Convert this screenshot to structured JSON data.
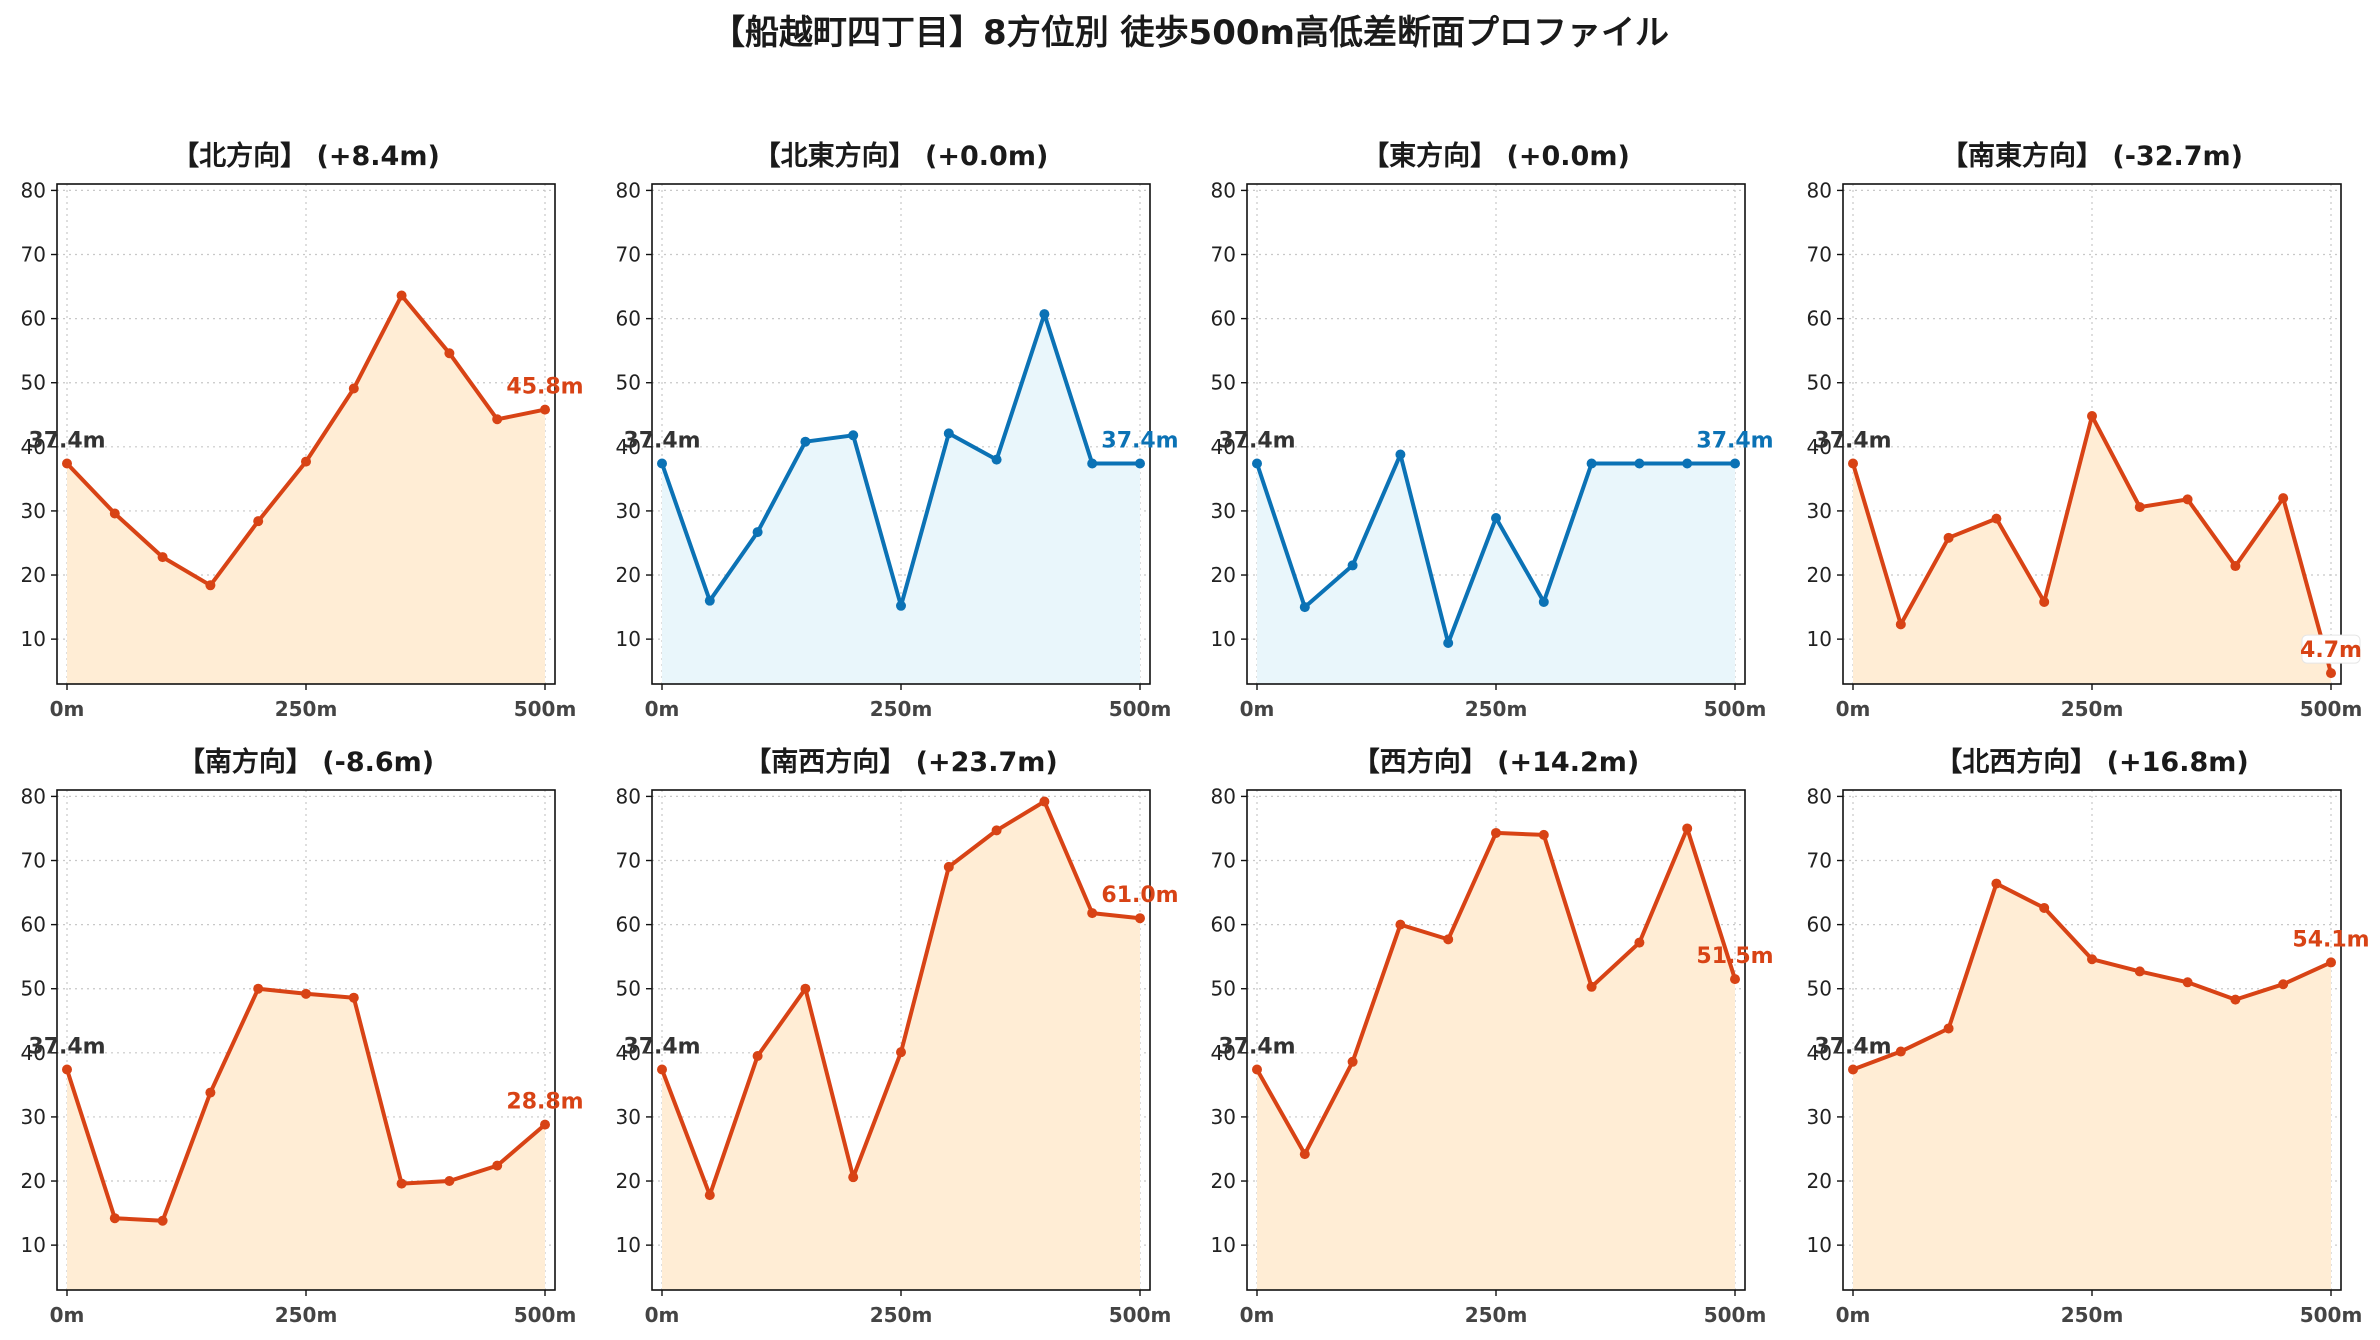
{
  "title": "【船越町四丁目】8方位別 徒歩500m高低差断面プロファイル",
  "colors": {
    "up_line": "#d84315",
    "up_fill": "#ffedd5",
    "flat_line": "#0b72b5",
    "flat_fill": "#e9f6fb"
  },
  "chart_data": [
    {
      "type": "area",
      "title": "【北方向】 (+8.4m)",
      "trend": "up",
      "x": [
        0,
        50,
        100,
        150,
        200,
        250,
        300,
        350,
        400,
        450,
        500
      ],
      "y": [
        37.4,
        29.6,
        22.8,
        18.4,
        28.4,
        37.7,
        49.1,
        63.6,
        54.6,
        44.3,
        45.8
      ],
      "start_label": "37.4m",
      "end_label": "45.8m",
      "xticks": [
        "0m",
        "250m",
        "500m"
      ],
      "yticks": [
        "10",
        "20",
        "30",
        "40",
        "50",
        "60",
        "70",
        "80"
      ],
      "ylim": [
        3,
        81
      ],
      "grid": true
    },
    {
      "type": "area",
      "title": "【北東方向】 (+0.0m)",
      "trend": "flat",
      "x": [
        0,
        50,
        100,
        150,
        200,
        250,
        300,
        350,
        400,
        450,
        500
      ],
      "y": [
        37.4,
        16.0,
        26.7,
        40.8,
        41.8,
        15.2,
        42.1,
        38.0,
        60.7,
        37.4,
        37.4
      ],
      "start_label": "37.4m",
      "end_label": "37.4m",
      "xticks": [
        "0m",
        "250m",
        "500m"
      ],
      "yticks": [
        "10",
        "20",
        "30",
        "40",
        "50",
        "60",
        "70",
        "80"
      ],
      "ylim": [
        3,
        81
      ],
      "grid": true
    },
    {
      "type": "area",
      "title": "【東方向】 (+0.0m)",
      "trend": "flat",
      "x": [
        0,
        50,
        100,
        150,
        200,
        250,
        300,
        350,
        400,
        450,
        500
      ],
      "y": [
        37.4,
        15.0,
        21.5,
        38.8,
        9.4,
        28.9,
        15.8,
        37.4,
        37.4,
        37.4,
        37.4
      ],
      "start_label": "37.4m",
      "end_label": "37.4m",
      "xticks": [
        "0m",
        "250m",
        "500m"
      ],
      "yticks": [
        "10",
        "20",
        "30",
        "40",
        "50",
        "60",
        "70",
        "80"
      ],
      "ylim": [
        3,
        81
      ],
      "grid": true
    },
    {
      "type": "area",
      "title": "【南東方向】 (-32.7m)",
      "trend": "down",
      "x": [
        0,
        50,
        100,
        150,
        200,
        250,
        300,
        350,
        400,
        450,
        500
      ],
      "y": [
        37.4,
        12.3,
        25.8,
        28.8,
        15.8,
        44.8,
        30.6,
        31.8,
        21.4,
        32.0,
        4.7
      ],
      "start_label": "37.4m",
      "end_label": "4.7m",
      "xticks": [
        "0m",
        "250m",
        "500m"
      ],
      "yticks": [
        "10",
        "20",
        "30",
        "40",
        "50",
        "60",
        "70",
        "80"
      ],
      "ylim": [
        3,
        81
      ],
      "grid": true
    },
    {
      "type": "area",
      "title": "【南方向】 (-8.6m)",
      "trend": "down",
      "x": [
        0,
        50,
        100,
        150,
        200,
        250,
        300,
        350,
        400,
        450,
        500
      ],
      "y": [
        37.4,
        14.2,
        13.8,
        33.8,
        50.0,
        49.2,
        48.6,
        19.6,
        20.0,
        22.4,
        28.8
      ],
      "start_label": "37.4m",
      "end_label": "28.8m",
      "xticks": [
        "0m",
        "250m",
        "500m"
      ],
      "yticks": [
        "10",
        "20",
        "30",
        "40",
        "50",
        "60",
        "70",
        "80"
      ],
      "ylim": [
        3,
        81
      ],
      "grid": true
    },
    {
      "type": "area",
      "title": "【南西方向】 (+23.7m)",
      "trend": "up",
      "x": [
        0,
        50,
        100,
        150,
        200,
        250,
        300,
        350,
        400,
        450,
        500
      ],
      "y": [
        37.4,
        17.8,
        39.5,
        50.0,
        20.6,
        40.1,
        69.0,
        74.7,
        79.2,
        61.8,
        61.0
      ],
      "start_label": "37.4m",
      "end_label": "61.0m",
      "xticks": [
        "0m",
        "250m",
        "500m"
      ],
      "yticks": [
        "10",
        "20",
        "30",
        "40",
        "50",
        "60",
        "70",
        "80"
      ],
      "ylim": [
        3,
        81
      ],
      "grid": true
    },
    {
      "type": "area",
      "title": "【西方向】 (+14.2m)",
      "trend": "up",
      "x": [
        0,
        50,
        100,
        150,
        200,
        250,
        300,
        350,
        400,
        450,
        500
      ],
      "y": [
        37.4,
        24.2,
        38.6,
        60.0,
        57.7,
        74.3,
        74.0,
        50.3,
        57.2,
        75.0,
        51.5
      ],
      "start_label": "37.4m",
      "end_label": "51.5m",
      "xticks": [
        "0m",
        "250m",
        "500m"
      ],
      "yticks": [
        "10",
        "20",
        "30",
        "40",
        "50",
        "60",
        "70",
        "80"
      ],
      "ylim": [
        3,
        81
      ],
      "grid": true
    },
    {
      "type": "area",
      "title": "【北西方向】 (+16.8m)",
      "trend": "up",
      "x": [
        0,
        50,
        100,
        150,
        200,
        250,
        300,
        350,
        400,
        450,
        500
      ],
      "y": [
        37.4,
        40.2,
        43.8,
        66.4,
        62.6,
        54.6,
        52.7,
        51.0,
        48.3,
        50.7,
        54.1
      ],
      "start_label": "37.4m",
      "end_label": "54.1m",
      "xticks": [
        "0m",
        "250m",
        "500m"
      ],
      "yticks": [
        "10",
        "20",
        "30",
        "40",
        "50",
        "60",
        "70",
        "80"
      ],
      "ylim": [
        3,
        81
      ],
      "grid": true
    }
  ]
}
